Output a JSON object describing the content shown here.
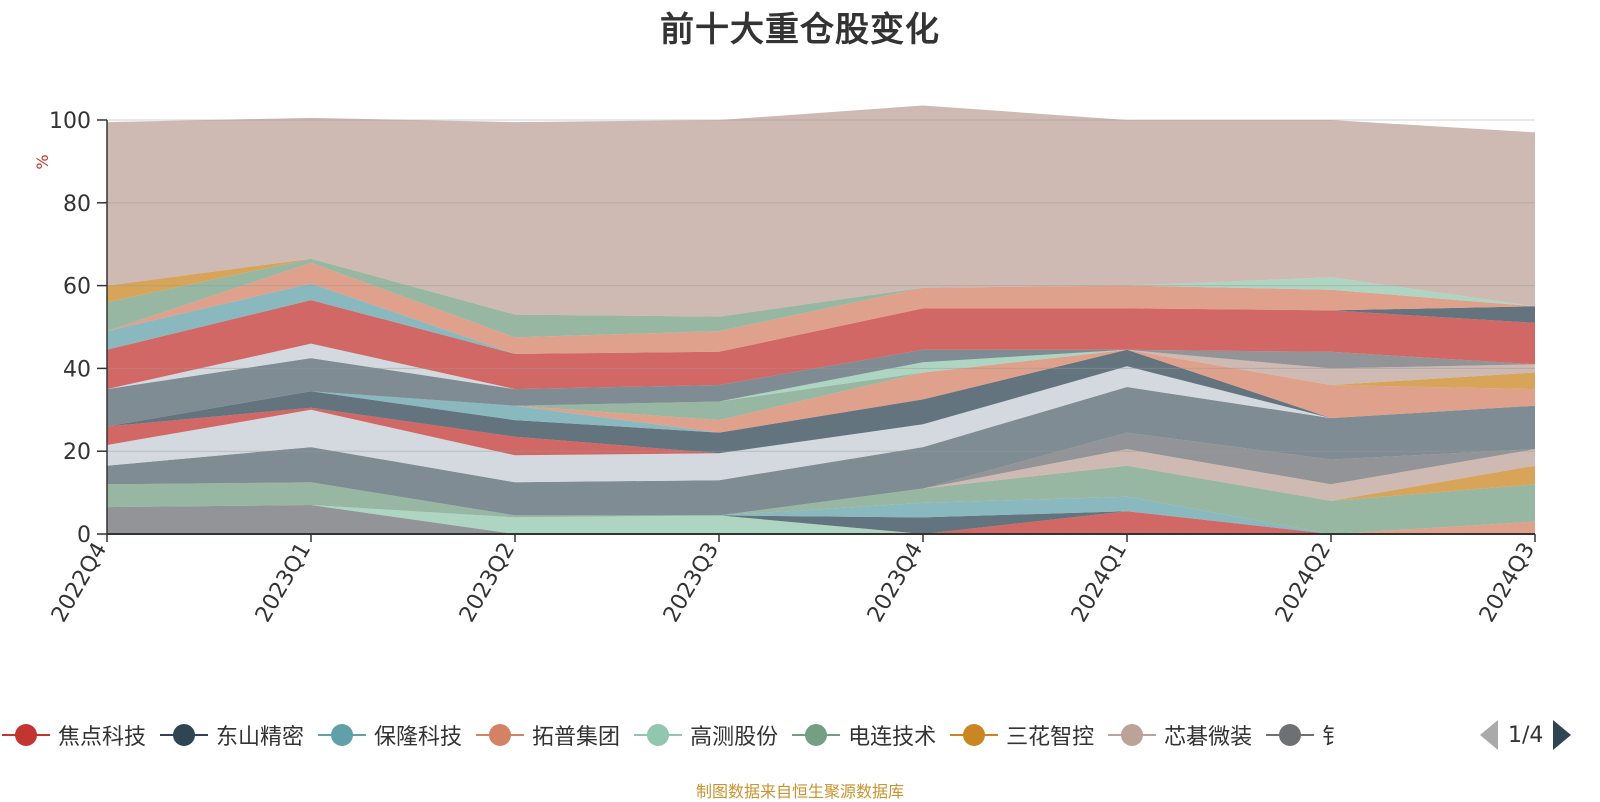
{
  "title": "前十大重仓股变化",
  "source_note": "制图数据来自恒生聚源数据库",
  "legend": {
    "page": "1/4",
    "items": [
      {
        "label": "焦点科技",
        "color": "#c23531"
      },
      {
        "label": "东山精密",
        "color": "#2f4554"
      },
      {
        "label": "保隆科技",
        "color": "#61a0a8"
      },
      {
        "label": "拓普集团",
        "color": "#d48265"
      },
      {
        "label": "高测股份",
        "color": "#91c7ae"
      },
      {
        "label": "电连技术",
        "color": "#749f83"
      },
      {
        "label": "三花智控",
        "color": "#ca8622"
      },
      {
        "label": "芯碁微装",
        "color": "#bda29a"
      },
      {
        "label": "钅",
        "color": "#6e7074"
      }
    ]
  },
  "chart_data": {
    "type": "area",
    "stacked": true,
    "categories": [
      "2022Q4",
      "2023Q1",
      "2023Q2",
      "2023Q3",
      "2023Q4",
      "2024Q1",
      "2024Q2",
      "2024Q3"
    ],
    "ylabel": "%",
    "ylim": [
      0,
      100
    ],
    "yticks": [
      0,
      20,
      40,
      60,
      80,
      100
    ],
    "grid": true,
    "series": [
      {
        "color": "#6e7074",
        "values": [
          6.5,
          7.0,
          0,
          0,
          0,
          0,
          0,
          0
        ]
      },
      {
        "color": "#91c7ae",
        "values": [
          0,
          0,
          4.0,
          4.5,
          0,
          0,
          0,
          0
        ]
      },
      {
        "color": "#c23531",
        "values": [
          0,
          0,
          0,
          0,
          0,
          5.5,
          0,
          0
        ]
      },
      {
        "color": "#d48265",
        "values": [
          0,
          0,
          0,
          0,
          0,
          0,
          0,
          3.0
        ]
      },
      {
        "color": "#2f4554",
        "values": [
          0,
          0,
          0,
          0,
          4.0,
          0,
          0,
          0
        ]
      },
      {
        "color": "#61a0a8",
        "values": [
          0,
          0,
          0,
          0,
          3.5,
          3.5,
          0,
          0
        ]
      },
      {
        "color": "#749f83",
        "values": [
          5.5,
          5.5,
          0.5,
          0,
          3.5,
          7.5,
          8.0,
          9.0
        ]
      },
      {
        "color": "#ca8622",
        "values": [
          0,
          0,
          0,
          0,
          0,
          0,
          0,
          4.5
        ]
      },
      {
        "color": "#bda29a",
        "values": [
          0,
          0,
          0,
          0,
          0,
          4.0,
          4.0,
          4.0
        ]
      },
      {
        "color": "#6e7074",
        "values": [
          0,
          0,
          0,
          0,
          0,
          4.0,
          6.0,
          0
        ]
      },
      {
        "color": "#546570",
        "values": [
          4.5,
          8.5,
          8.0,
          8.5,
          10.0,
          11.0,
          10.0,
          10.5
        ]
      },
      {
        "color": "#c4ccd3",
        "values": [
          5.0,
          9.0,
          6.5,
          6.5,
          5.5,
          5.0,
          0,
          0
        ]
      },
      {
        "color": "#c23531",
        "values": [
          4.5,
          0.5,
          4.5,
          0,
          0,
          0,
          0,
          0
        ]
      },
      {
        "color": "#2f4554",
        "values": [
          0,
          4.0,
          4.0,
          5.0,
          6.0,
          4.0,
          0,
          0
        ]
      },
      {
        "color": "#61a0a8",
        "values": [
          0,
          0,
          3.5,
          0,
          0,
          0,
          0,
          0
        ]
      },
      {
        "color": "#d48265",
        "values": [
          0,
          0,
          0,
          3.0,
          6.5,
          0,
          8.0,
          4.0
        ]
      },
      {
        "color": "#749f83",
        "values": [
          0,
          0,
          0,
          4.5,
          0,
          0,
          0,
          0
        ]
      },
      {
        "color": "#91c7ae",
        "values": [
          0,
          0,
          0,
          0,
          2.5,
          0,
          0,
          0
        ]
      },
      {
        "color": "#ca8622",
        "values": [
          0,
          0,
          0,
          0,
          0,
          0,
          0,
          4.0
        ]
      },
      {
        "color": "#bda29a",
        "values": [
          0,
          0,
          0,
          0,
          0,
          0,
          4.0,
          2.0
        ]
      },
      {
        "color": "#6e7074",
        "values": [
          0,
          0,
          0,
          0,
          0,
          0,
          4.0,
          0
        ]
      },
      {
        "color": "#546570",
        "values": [
          9.0,
          8.0,
          4.0,
          4.0,
          3.0,
          0,
          0,
          0
        ]
      },
      {
        "color": "#c4ccd3",
        "values": [
          0,
          3.5,
          0,
          0,
          0,
          0,
          0,
          0
        ]
      },
      {
        "color": "#c23531",
        "values": [
          9.5,
          10.5,
          8.5,
          8.0,
          10.0,
          10.0,
          10.0,
          10.0
        ]
      },
      {
        "color": "#2f4554",
        "values": [
          0,
          0,
          0,
          0,
          0,
          0,
          0,
          4.0
        ]
      },
      {
        "color": "#61a0a8",
        "values": [
          4.5,
          4.0,
          0,
          0,
          0,
          0,
          0,
          0
        ]
      },
      {
        "color": "#d48265",
        "values": [
          0,
          5.0,
          4.0,
          5.0,
          5.0,
          5.5,
          5.0,
          0
        ]
      },
      {
        "color": "#91c7ae",
        "values": [
          0,
          0,
          0,
          0,
          0,
          0,
          3.0,
          0
        ]
      },
      {
        "color": "#749f83",
        "values": [
          7.0,
          1.0,
          5.5,
          3.5,
          0,
          0,
          0,
          0
        ]
      },
      {
        "color": "#ca8622",
        "values": [
          4.0,
          0,
          0,
          0,
          0,
          0,
          0,
          0
        ]
      },
      {
        "color": "#bda29a",
        "values": [
          39.5,
          34.0,
          46.5,
          47.5,
          44.0,
          40.0,
          38.0,
          42.0
        ]
      }
    ]
  }
}
